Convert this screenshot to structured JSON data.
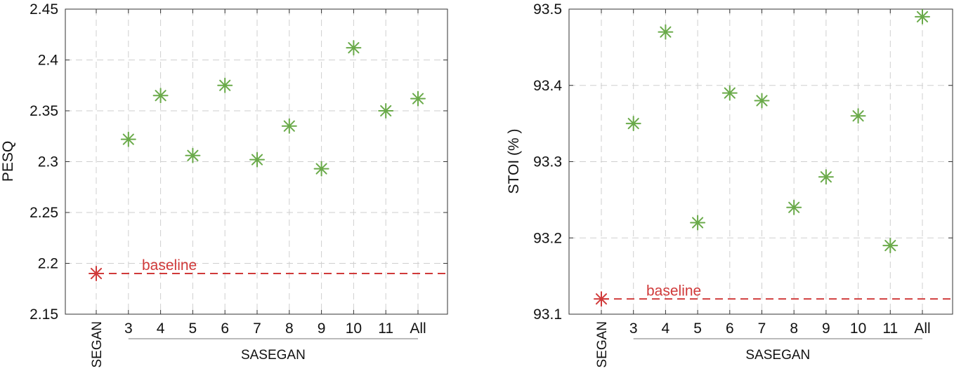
{
  "colors": {
    "sasegan_marker": "#6aaa4a",
    "baseline": "#d03a3a",
    "grid": "#cfcfcf",
    "axis": "#333333"
  },
  "chart_data": [
    {
      "type": "scatter",
      "ylabel": "PESQ",
      "ylim": [
        2.15,
        2.45
      ],
      "yticks": [
        "2.15",
        "2.2",
        "2.25",
        "2.3",
        "2.35",
        "2.4",
        "2.45"
      ],
      "categories": [
        "SEGAN",
        "3",
        "4",
        "5",
        "6",
        "7",
        "8",
        "9",
        "10",
        "11",
        "All"
      ],
      "group_label": "SASEGAN",
      "grid": true,
      "baseline": {
        "label": "baseline",
        "value": 2.19
      },
      "series": [
        {
          "category": "SEGAN",
          "values": [
            2.19
          ]
        },
        {
          "category": "SASEGAN",
          "values": [
            null,
            2.322,
            2.365,
            2.306,
            2.375,
            2.302,
            2.335,
            2.293,
            2.412,
            2.35,
            2.362
          ]
        }
      ]
    },
    {
      "type": "scatter",
      "ylabel": "STOI (% )",
      "ylim": [
        93.1,
        93.5
      ],
      "yticks": [
        "93.1",
        "93.2",
        "93.3",
        "93.4",
        "93.5"
      ],
      "categories": [
        "SEGAN",
        "3",
        "4",
        "5",
        "6",
        "7",
        "8",
        "9",
        "10",
        "11",
        "All"
      ],
      "group_label": "SASEGAN",
      "grid": true,
      "baseline": {
        "label": "baseline",
        "value": 93.12
      },
      "series": [
        {
          "category": "SEGAN",
          "values": [
            93.12
          ]
        },
        {
          "category": "SASEGAN",
          "values": [
            null,
            93.35,
            93.47,
            93.22,
            93.39,
            93.38,
            93.24,
            93.28,
            93.36,
            93.19,
            93.49
          ]
        }
      ]
    }
  ]
}
